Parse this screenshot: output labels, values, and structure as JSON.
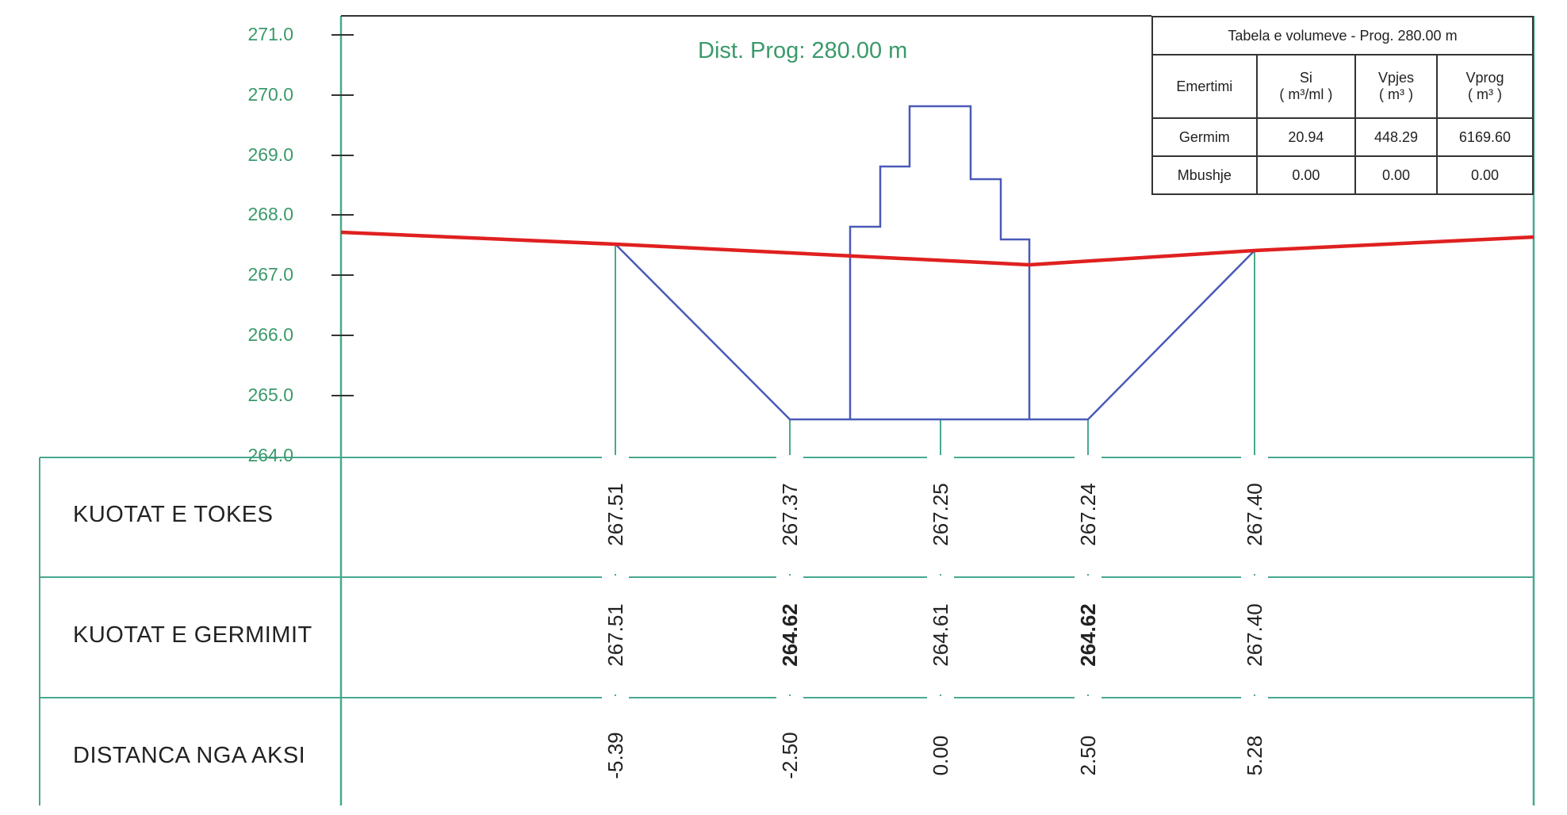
{
  "diagram": {
    "title": "Dist. Prog: 280.00 m",
    "elevation_labels": [
      "271.0",
      "270.0",
      "269.0",
      "268.0",
      "267.0",
      "266.0",
      "265.0",
      "264.0"
    ],
    "rows": [
      {
        "label": "KUOTAT E TOKES",
        "values": [
          "267.51",
          "267.37",
          "267.25",
          "267.24",
          "267.40"
        ]
      },
      {
        "label": "KUOTAT E GERMIMIT",
        "values": [
          "267.51",
          "264.62",
          "264.61",
          "264.62",
          "267.40"
        ]
      },
      {
        "label": "DISTANCA NGA AKSI",
        "values": [
          "-5.39",
          "-2.50",
          "0.00",
          "2.50",
          "5.28"
        ]
      }
    ],
    "colors": {
      "ground_line": "#e02020",
      "section": "#4a5ab8",
      "grid": "#48a890",
      "text_green": "#3a9a6a"
    }
  },
  "volume_table": {
    "caption": "Tabela e volumeve - Prog. 280.00 m",
    "headers": [
      "Emertimi",
      "Si\n( m³/ml )",
      "Vpjes\n( m³ )",
      "Vprog\n( m³ )"
    ],
    "rows": [
      [
        "Germim",
        "20.94",
        "448.29",
        "6169.60"
      ],
      [
        "Mbushje",
        "0.00",
        "0.00",
        "0.00"
      ]
    ]
  }
}
